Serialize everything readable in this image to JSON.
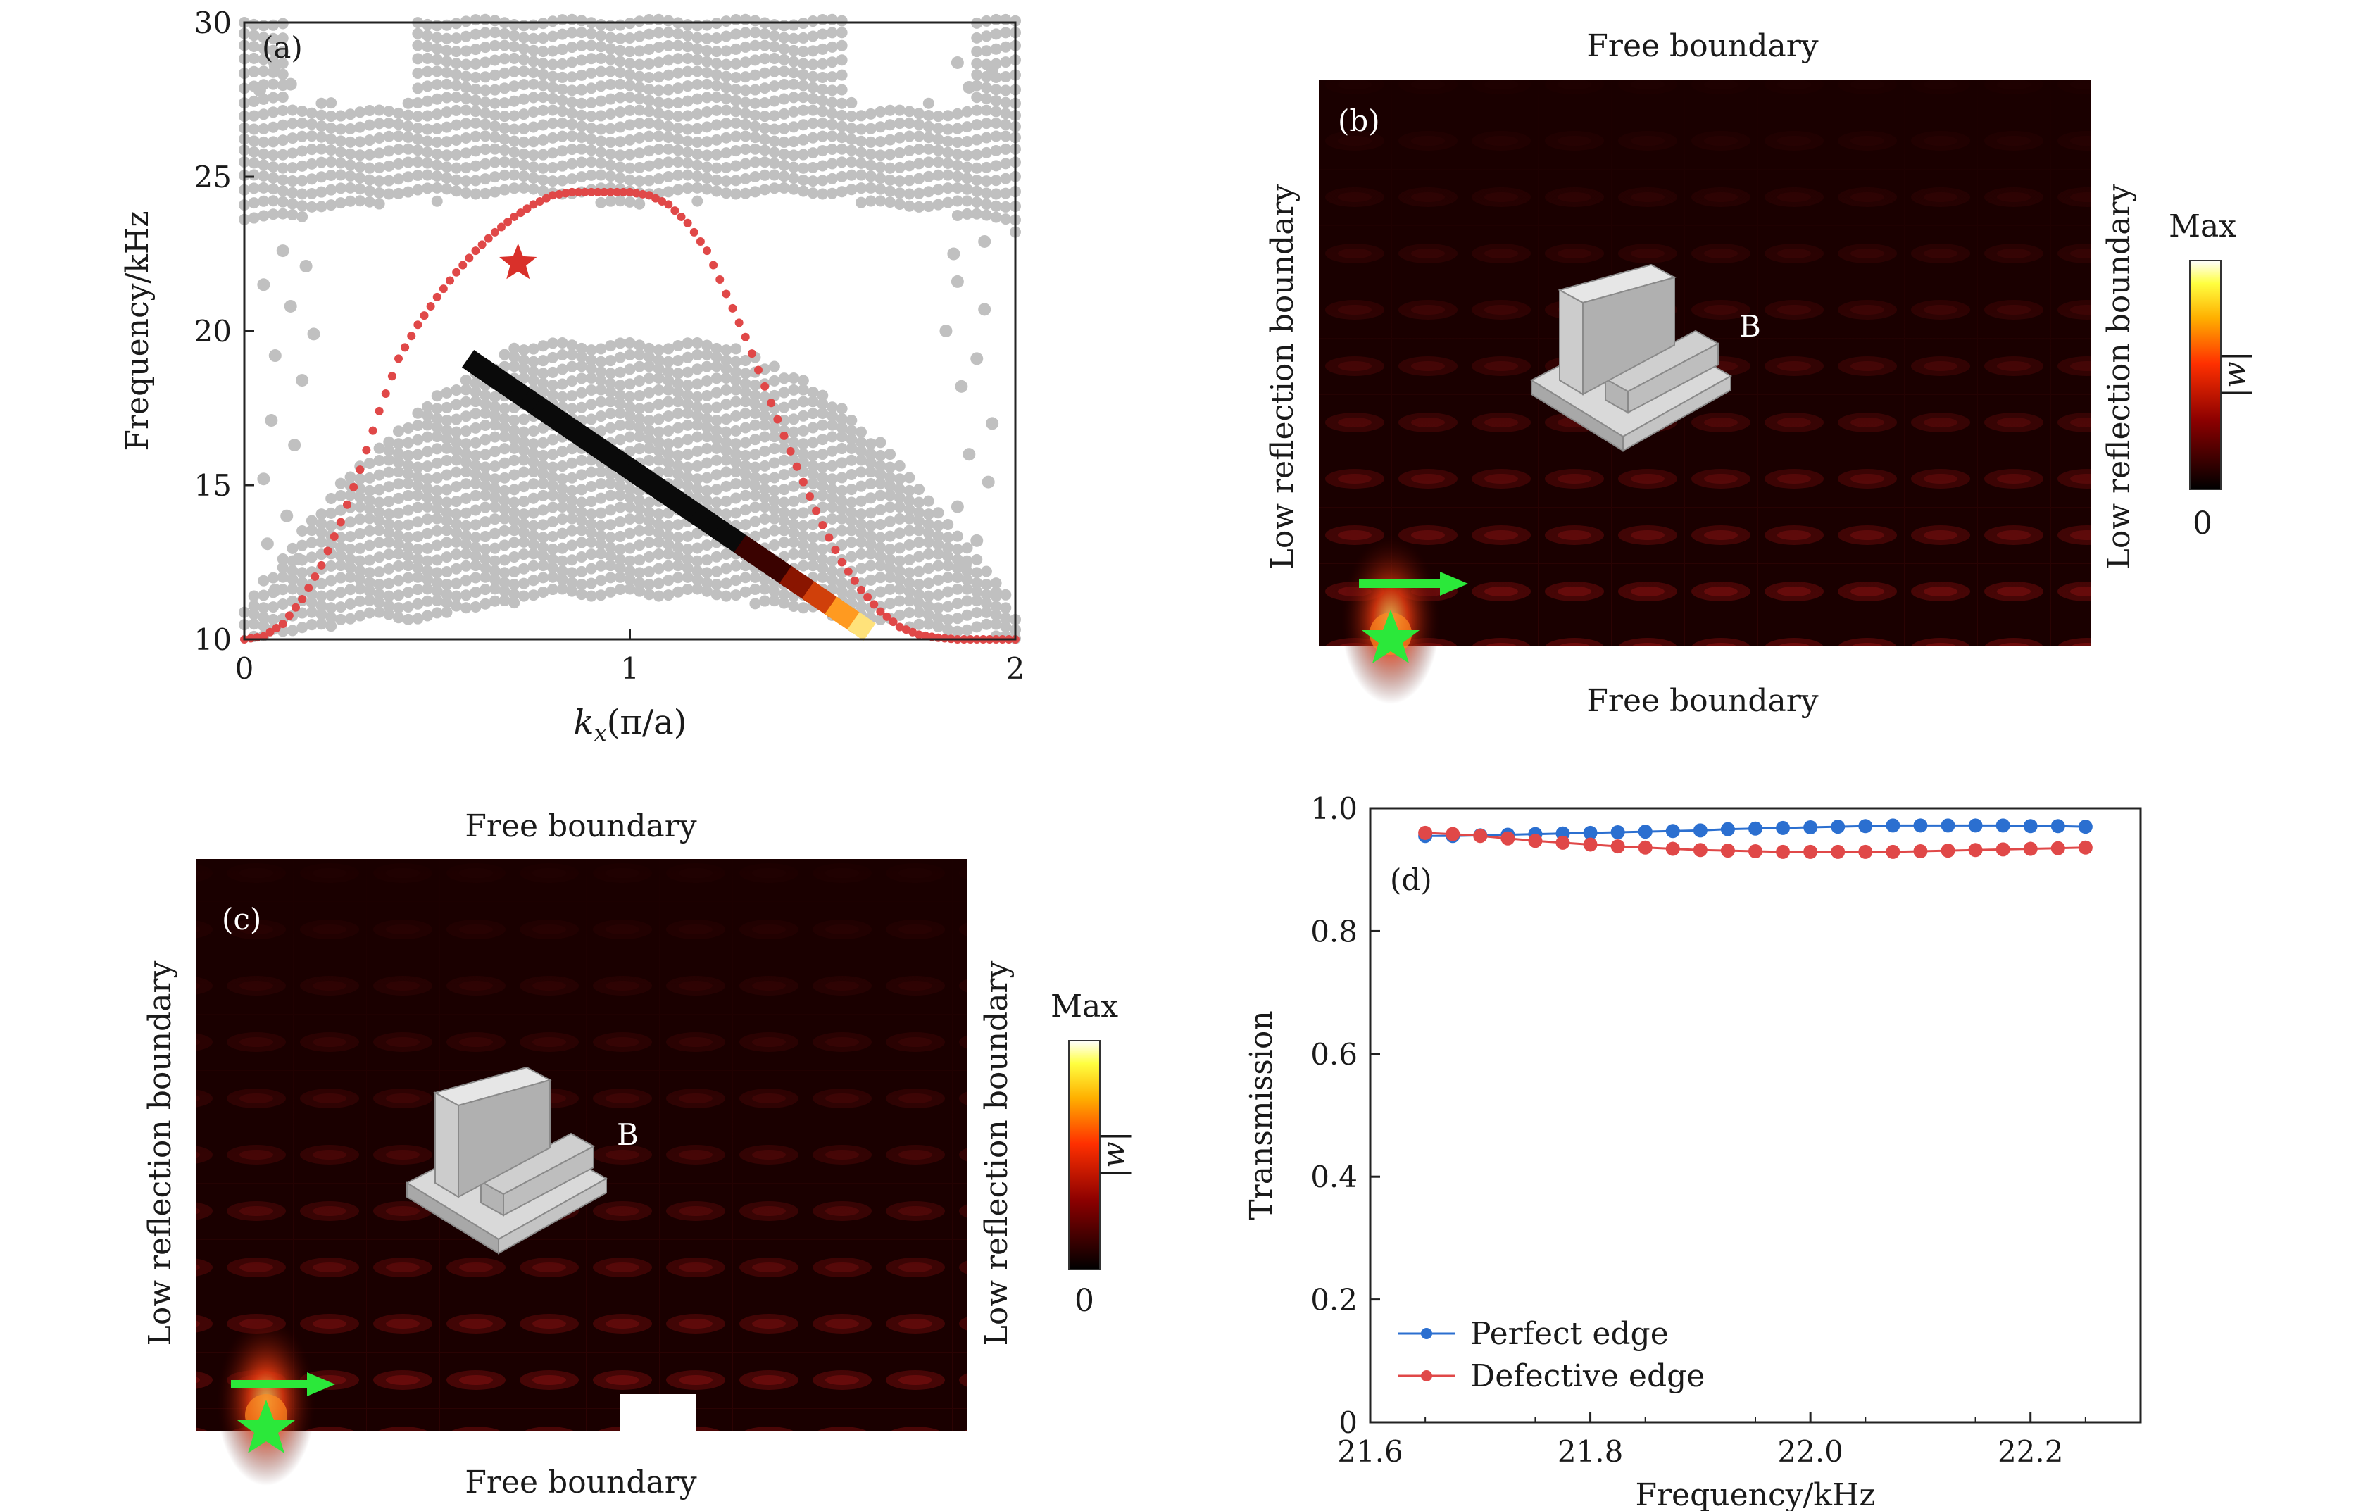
{
  "panel_a": {
    "label": "(a)",
    "chart_data": {
      "type": "scatter",
      "title": "",
      "xlabel_main": "k",
      "xlabel_sub": "x",
      "xlabel_rest": "(π/a)",
      "ylabel": "Frequency/kHz",
      "xlim": [
        0,
        2
      ],
      "ylim": [
        10,
        30
      ],
      "xticks": [
        0,
        1,
        2
      ],
      "yticks": [
        10,
        15,
        20,
        25,
        30
      ],
      "edge_band": {
        "name": "Edge state",
        "color": "#e04848",
        "x": [
          0.0,
          0.05,
          0.1,
          0.15,
          0.2,
          0.25,
          0.3,
          0.35,
          0.4,
          0.45,
          0.5,
          0.55,
          0.6,
          0.65,
          0.7,
          0.75,
          0.8,
          0.85,
          0.9,
          0.95,
          1.0,
          1.05,
          1.1,
          1.15,
          1.2,
          1.25,
          1.3,
          1.35,
          1.4,
          1.45,
          1.5,
          1.55,
          1.6,
          1.65,
          1.7,
          1.75,
          1.8,
          1.85,
          1.9,
          1.95,
          2.0
        ],
        "y": [
          10.0,
          10.1,
          10.5,
          11.3,
          12.4,
          13.8,
          15.5,
          17.4,
          19.1,
          20.2,
          21.1,
          21.9,
          22.6,
          23.2,
          23.7,
          24.1,
          24.4,
          24.5,
          24.5,
          24.5,
          24.5,
          24.4,
          24.1,
          23.5,
          22.6,
          21.2,
          19.8,
          18.2,
          16.6,
          15.1,
          13.7,
          12.5,
          11.6,
          10.9,
          10.4,
          10.15,
          10.05,
          10.0,
          10.0,
          10.0,
          10.0
        ]
      },
      "marker_star": {
        "x": 0.71,
        "y": 22.2,
        "color": "#d9302a"
      },
      "defect_band": {
        "x_start": 0.6,
        "y_start": 18.9,
        "x_end": 1.6,
        "y_end": 10.4
      },
      "bulk_color": "#c0c0c0"
    }
  },
  "panel_b": {
    "label": "(b)",
    "top_label": "Free boundary",
    "bottom_label": "Free boundary",
    "left_label": "Low reflection boundary",
    "right_label": "Low reflection boundary",
    "defect_label": "B",
    "colorbar_max": "Max",
    "colorbar_min": "0",
    "colorbar_var": "|w|"
  },
  "panel_c": {
    "label": "(c)",
    "top_label": "Free boundary",
    "bottom_label": "Free boundary",
    "left_label": "Low reflection boundary",
    "right_label": "Low reflection boundary",
    "defect_label": "B",
    "colorbar_max": "Max",
    "colorbar_min": "0",
    "colorbar_var": "|w|"
  },
  "panel_d": {
    "label": "(d)",
    "chart_data": {
      "type": "line",
      "title": "",
      "xlabel": "Frequency/kHz",
      "ylabel": "Transmission",
      "xlim": [
        21.6,
        22.3
      ],
      "ylim": [
        0,
        1.0
      ],
      "xticks": [
        "21.6",
        "21.8",
        "22.0",
        "22.2"
      ],
      "yticks": [
        "0",
        "0.2",
        "0.4",
        "0.6",
        "0.8",
        "1.0"
      ],
      "legend_position": "bottom-left",
      "x": [
        21.65,
        21.675,
        21.7,
        21.725,
        21.75,
        21.775,
        21.8,
        21.825,
        21.85,
        21.875,
        21.9,
        21.925,
        21.95,
        21.975,
        22.0,
        22.025,
        22.05,
        22.075,
        22.1,
        22.125,
        22.15,
        22.175,
        22.2,
        22.225,
        22.25
      ],
      "series": [
        {
          "name": "Perfect edge",
          "color": "#2b6fd0",
          "values": [
            0.955,
            0.955,
            0.956,
            0.957,
            0.958,
            0.959,
            0.96,
            0.961,
            0.962,
            0.963,
            0.964,
            0.966,
            0.967,
            0.968,
            0.969,
            0.97,
            0.971,
            0.972,
            0.972,
            0.972,
            0.972,
            0.972,
            0.971,
            0.971,
            0.97
          ]
        },
        {
          "name": "Defective edge",
          "color": "#e04848",
          "values": [
            0.96,
            0.958,
            0.955,
            0.951,
            0.947,
            0.944,
            0.941,
            0.938,
            0.936,
            0.934,
            0.932,
            0.931,
            0.93,
            0.929,
            0.929,
            0.929,
            0.929,
            0.929,
            0.93,
            0.931,
            0.932,
            0.933,
            0.934,
            0.935,
            0.936
          ]
        }
      ]
    }
  }
}
